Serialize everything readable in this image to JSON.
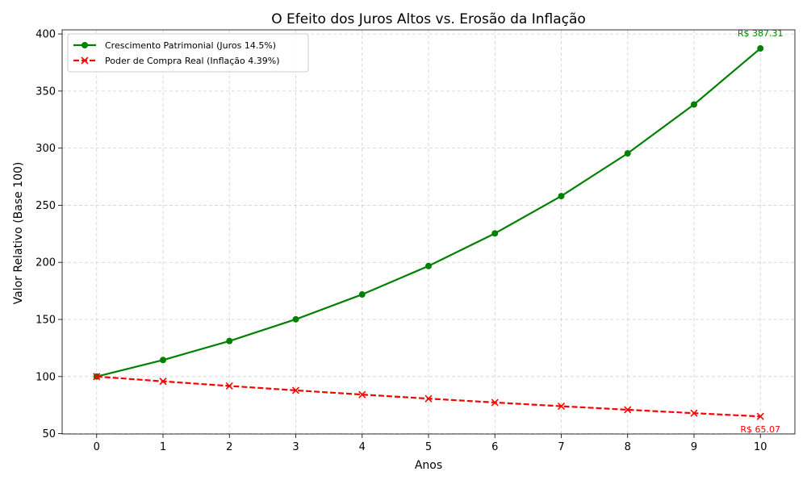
{
  "chart_data": {
    "type": "line",
    "title": "O Efeito dos Juros Altos vs. Erosão da Inflação",
    "xlabel": "Anos",
    "ylabel": "Valor Relativo (Base 100)",
    "x": [
      0,
      1,
      2,
      3,
      4,
      5,
      6,
      7,
      8,
      9,
      10
    ],
    "xticks": [
      "0",
      "1",
      "2",
      "3",
      "4",
      "5",
      "6",
      "7",
      "8",
      "9",
      "10"
    ],
    "yticks": [
      "50",
      "100",
      "150",
      "200",
      "250",
      "300",
      "350",
      "400"
    ],
    "xlim": [
      -0.52,
      10.52
    ],
    "ylim": [
      49.7,
      403.6
    ],
    "grid": true,
    "legend_position": "top-left",
    "series": [
      {
        "name": "Crescimento Patrimonial (Juros 14.5%)",
        "values": [
          100.0,
          114.5,
          131.1,
          150.11,
          171.88,
          196.8,
          225.34,
          258.02,
          295.43,
          338.27,
          387.31
        ],
        "color": "#008000",
        "marker": "circle",
        "line_style": "solid"
      },
      {
        "name": "Poder de Compra Real (Inflação 4.39%)",
        "values": [
          100.0,
          95.79,
          91.76,
          87.91,
          84.21,
          80.67,
          77.28,
          74.03,
          70.92,
          67.93,
          65.07
        ],
        "color": "#ff0000",
        "marker": "x",
        "line_style": "dashed"
      }
    ],
    "annotations": [
      {
        "text": "R$ 387.31",
        "x": 10,
        "y": 387.31,
        "color": "#008000",
        "placement": "above"
      },
      {
        "text": "R$ 65.07",
        "x": 10,
        "y": 65.07,
        "color": "#ff0000",
        "placement": "below"
      }
    ]
  }
}
